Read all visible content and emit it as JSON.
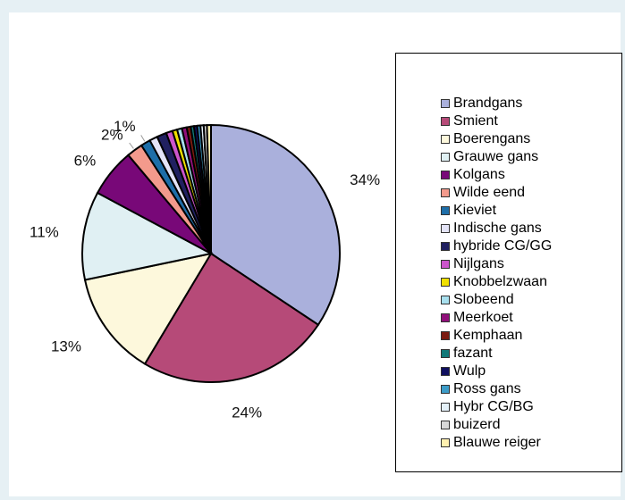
{
  "chart_data": {
    "type": "pie",
    "slices": [
      {
        "name": "Brandgans",
        "value": 34,
        "color": "#aab0dc"
      },
      {
        "name": "Smient",
        "value": 24,
        "color": "#b64a78"
      },
      {
        "name": "Boerengans",
        "value": 13,
        "color": "#fdf8dc"
      },
      {
        "name": "Grauwe gans",
        "value": 11,
        "color": "#e0f0f3"
      },
      {
        "name": "Kolgans",
        "value": 6,
        "color": "#780878"
      },
      {
        "name": "Wilde eend",
        "value": 2,
        "color": "#f39a8c"
      },
      {
        "name": "Kieviet",
        "value": 1.2,
        "color": "#1e6ea8"
      },
      {
        "name": "Indische gans",
        "value": 1.0,
        "color": "#e4e4f8"
      },
      {
        "name": "hybride CG/GG",
        "value": 1.2,
        "color": "#202060"
      },
      {
        "name": "Nijlgans",
        "value": 0.8,
        "color": "#cc55cc"
      },
      {
        "name": "Knobbelzwaan",
        "value": 0.6,
        "color": "#f0e000"
      },
      {
        "name": "Slobeend",
        "value": 0.6,
        "color": "#a8e0ee"
      },
      {
        "name": "Meerkoet",
        "value": 0.6,
        "color": "#90107a"
      },
      {
        "name": "Kemphaan",
        "value": 0.5,
        "color": "#7a1a10"
      },
      {
        "name": "fazant",
        "value": 0.4,
        "color": "#107878"
      },
      {
        "name": "Wulp",
        "value": 0.4,
        "color": "#101060"
      },
      {
        "name": "Ross gans",
        "value": 0.4,
        "color": "#3c9cc8"
      },
      {
        "name": "Hybr CG/BG",
        "value": 0.4,
        "color": "#e4f0f8"
      },
      {
        "name": "buizerd",
        "value": 0.4,
        "color": "#d8d8d8"
      },
      {
        "name": "Blauwe reiger",
        "value": 0.5,
        "color": "#fff0b0"
      }
    ],
    "labels": [
      {
        "text": "34%",
        "slice": 0
      },
      {
        "text": "24%",
        "slice": 1
      },
      {
        "text": "13%",
        "slice": 2
      },
      {
        "text": "11%",
        "slice": 3
      },
      {
        "text": "6%",
        "slice": 4
      },
      {
        "text": "2%",
        "slice": 5
      },
      {
        "text": "1%",
        "slice": 6
      }
    ],
    "start_angle_deg": 0,
    "direction": "clockwise",
    "legend_position": "right"
  }
}
